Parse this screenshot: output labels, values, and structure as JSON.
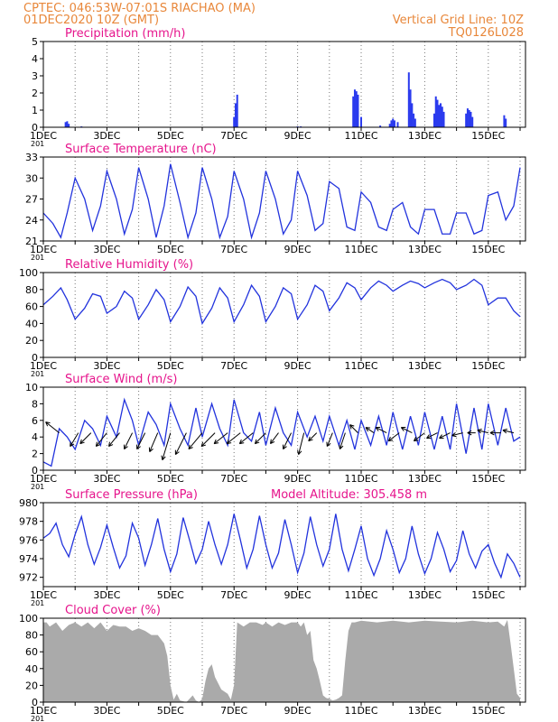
{
  "header": {
    "line1": "CPTEC:   046:53W-07:01S   RIACHAO (MA)",
    "line2": "01DEC2020 10Z (GMT)",
    "right1": "Vertical Grid Line: 10Z",
    "right2": "TQ0126L028"
  },
  "x_ticks": [
    "1DEC",
    "3DEC",
    "5DEC",
    "7DEC",
    "9DEC",
    "11DEC",
    "13DEC",
    "15DEC"
  ],
  "x_ticks_truncated": "201",
  "colors": {
    "line": "#2233dd",
    "bar": "#2a3aee",
    "cloud": "#aaaaaa",
    "header": "#e8873a",
    "title": "#e6148c",
    "grid": "#777777"
  },
  "chart_data": [
    {
      "type": "bar",
      "title": "Precipitation (mm/h)",
      "ylim": [
        0,
        5
      ],
      "yticks": [
        0,
        1,
        2,
        3,
        4,
        5
      ],
      "bars": [
        [
          1.7,
          0.3
        ],
        [
          1.75,
          0.35
        ],
        [
          1.8,
          0.2
        ],
        [
          2.2,
          0.05
        ],
        [
          7.0,
          0.6
        ],
        [
          7.05,
          1.4
        ],
        [
          7.1,
          1.9
        ],
        [
          10.75,
          1.8
        ],
        [
          10.8,
          2.2
        ],
        [
          10.85,
          2.1
        ],
        [
          10.9,
          1.9
        ],
        [
          11.0,
          0.6
        ],
        [
          11.6,
          0.1
        ],
        [
          11.9,
          0.2
        ],
        [
          11.95,
          0.4
        ],
        [
          12.0,
          0.5
        ],
        [
          12.05,
          0.4
        ],
        [
          12.15,
          0.3
        ],
        [
          12.5,
          3.2
        ],
        [
          12.55,
          2.2
        ],
        [
          12.6,
          1.4
        ],
        [
          12.65,
          0.8
        ],
        [
          12.7,
          0.5
        ],
        [
          13.3,
          0.8
        ],
        [
          13.35,
          1.8
        ],
        [
          13.4,
          1.6
        ],
        [
          13.45,
          1.3
        ],
        [
          13.5,
          1.4
        ],
        [
          13.55,
          1.2
        ],
        [
          13.6,
          0.9
        ],
        [
          14.3,
          0.8
        ],
        [
          14.35,
          1.1
        ],
        [
          14.4,
          1.0
        ],
        [
          14.45,
          0.9
        ],
        [
          14.5,
          0.6
        ],
        [
          15.5,
          0.7
        ],
        [
          15.55,
          0.5
        ],
        [
          9.0,
          0.05
        ],
        [
          9.1,
          0.05
        ]
      ]
    },
    {
      "type": "line",
      "title": "Surface Temperature (nC)",
      "ylim": [
        21,
        33
      ],
      "yticks": [
        21,
        24,
        27,
        30,
        33
      ],
      "x": [
        1.0,
        1.3,
        1.55,
        1.75,
        2.0,
        2.3,
        2.55,
        2.8,
        3.0,
        3.3,
        3.55,
        3.8,
        4.0,
        4.3,
        4.55,
        4.8,
        5.0,
        5.3,
        5.55,
        5.8,
        6.0,
        6.3,
        6.55,
        6.8,
        7.0,
        7.3,
        7.55,
        7.8,
        8.0,
        8.3,
        8.55,
        8.8,
        9.0,
        9.3,
        9.55,
        9.8,
        10.0,
        10.3,
        10.55,
        10.8,
        11.0,
        11.3,
        11.55,
        11.8,
        12.0,
        12.3,
        12.55,
        12.8,
        13.0,
        13.3,
        13.55,
        13.8,
        14.0,
        14.3,
        14.55,
        14.8,
        15.0,
        15.3,
        15.55,
        15.8,
        16.0
      ],
      "y": [
        25,
        23.5,
        21.5,
        25,
        30,
        27,
        22.5,
        26,
        31,
        27,
        22,
        25.5,
        31.5,
        27,
        21.5,
        26,
        32,
        26.5,
        21.5,
        25,
        31.5,
        27,
        21.5,
        24.5,
        31,
        27,
        21.5,
        25,
        31,
        27,
        22,
        24,
        31,
        27.5,
        22.5,
        23.5,
        29.5,
        28.5,
        23,
        22.5,
        28,
        26.5,
        23,
        22.5,
        25.5,
        26.5,
        23,
        22,
        25.5,
        25.5,
        22,
        22,
        25,
        25,
        22,
        22.5,
        27.5,
        28,
        24,
        26,
        31.5
      ]
    },
    {
      "type": "line",
      "title": "Relative Humidity (%)",
      "ylim": [
        0,
        100
      ],
      "yticks": [
        0,
        20,
        40,
        60,
        80,
        100
      ],
      "x": [
        1.0,
        1.3,
        1.55,
        1.75,
        2.0,
        2.3,
        2.55,
        2.8,
        3.0,
        3.3,
        3.55,
        3.8,
        4.0,
        4.3,
        4.55,
        4.8,
        5.0,
        5.3,
        5.55,
        5.8,
        6.0,
        6.3,
        6.55,
        6.8,
        7.0,
        7.3,
        7.55,
        7.8,
        8.0,
        8.3,
        8.55,
        8.8,
        9.0,
        9.3,
        9.55,
        9.8,
        10.0,
        10.3,
        10.55,
        10.8,
        11.0,
        11.3,
        11.55,
        11.8,
        12.0,
        12.3,
        12.55,
        12.8,
        13.0,
        13.3,
        13.55,
        13.8,
        14.0,
        14.3,
        14.55,
        14.8,
        15.0,
        15.3,
        15.55,
        15.8,
        16.0
      ],
      "y": [
        62,
        72,
        82,
        68,
        45,
        58,
        75,
        72,
        52,
        60,
        78,
        70,
        45,
        62,
        80,
        68,
        42,
        60,
        83,
        72,
        40,
        58,
        82,
        70,
        42,
        62,
        85,
        72,
        42,
        60,
        82,
        75,
        45,
        62,
        85,
        78,
        55,
        70,
        88,
        82,
        68,
        82,
        90,
        85,
        78,
        85,
        90,
        87,
        82,
        88,
        92,
        88,
        80,
        85,
        92,
        85,
        62,
        70,
        70,
        55,
        48
      ]
    },
    {
      "type": "line",
      "title": "Surface Wind (m/s)",
      "ylim": [
        0,
        10
      ],
      "yticks": [
        0,
        2,
        4,
        6,
        8,
        10
      ],
      "x": [
        1.0,
        1.25,
        1.5,
        1.75,
        2.0,
        2.3,
        2.55,
        2.8,
        3.0,
        3.3,
        3.55,
        3.8,
        4.0,
        4.3,
        4.55,
        4.8,
        5.0,
        5.3,
        5.55,
        5.8,
        6.0,
        6.3,
        6.55,
        6.8,
        7.0,
        7.3,
        7.55,
        7.8,
        8.0,
        8.3,
        8.55,
        8.8,
        9.0,
        9.3,
        9.55,
        9.8,
        10.0,
        10.3,
        10.55,
        10.8,
        11.0,
        11.3,
        11.55,
        11.8,
        12.0,
        12.3,
        12.55,
        12.8,
        13.0,
        13.3,
        13.55,
        13.8,
        14.0,
        14.3,
        14.55,
        14.8,
        15.0,
        15.3,
        15.55,
        15.8,
        16.0
      ],
      "y": [
        1.0,
        0.5,
        5.0,
        4.0,
        2.5,
        6.0,
        5.0,
        3.0,
        6.5,
        4.0,
        8.5,
        6.0,
        3.0,
        7.0,
        5.5,
        3.0,
        8.0,
        5.0,
        3.0,
        7.5,
        4.0,
        8.0,
        5.0,
        3.0,
        8.5,
        4.5,
        3.5,
        7.0,
        3.0,
        7.5,
        4.5,
        3.0,
        7.0,
        4.0,
        6.5,
        3.5,
        6.5,
        3.0,
        6.0,
        2.5,
        6.0,
        3.0,
        6.5,
        3.0,
        7.0,
        2.5,
        6.5,
        3.0,
        7.0,
        2.5,
        6.5,
        2.5,
        8.0,
        2.0,
        7.5,
        2.5,
        8.0,
        3.0,
        7.5,
        3.5,
        4.0
      ],
      "wind_vectors": [
        [
          1.5,
          -0.5,
          0.4
        ],
        [
          2.1,
          -0.3,
          -0.5
        ],
        [
          2.5,
          -0.4,
          -0.4
        ],
        [
          3.0,
          -0.4,
          -0.5
        ],
        [
          3.4,
          -0.4,
          -0.5
        ],
        [
          3.8,
          -0.3,
          -0.6
        ],
        [
          4.2,
          -0.3,
          -0.6
        ],
        [
          4.6,
          -0.3,
          -0.7
        ],
        [
          5.0,
          -0.3,
          -1.0
        ],
        [
          5.5,
          -0.4,
          -0.8
        ],
        [
          6.0,
          -0.5,
          -0.6
        ],
        [
          6.4,
          -0.5,
          -0.5
        ],
        [
          6.8,
          -0.5,
          -0.4
        ],
        [
          7.2,
          -0.5,
          -0.4
        ],
        [
          7.6,
          -0.5,
          -0.4
        ],
        [
          8.0,
          -0.4,
          -0.4
        ],
        [
          8.4,
          -0.3,
          -0.4
        ],
        [
          8.8,
          -0.3,
          -0.6
        ],
        [
          9.2,
          -0.2,
          -0.8
        ],
        [
          9.6,
          -0.3,
          -0.3
        ],
        [
          10.1,
          -0.2,
          -0.5
        ],
        [
          10.5,
          -0.2,
          -0.6
        ],
        [
          10.9,
          -0.3,
          0.3
        ],
        [
          11.4,
          -0.3,
          0.2
        ],
        [
          11.8,
          -0.4,
          0.2
        ],
        [
          12.2,
          -0.4,
          -0.3
        ],
        [
          12.6,
          -0.4,
          0.2
        ],
        [
          13.0,
          -0.4,
          -0.3
        ],
        [
          13.4,
          -0.4,
          -0.2
        ],
        [
          13.8,
          -0.4,
          -0.2
        ],
        [
          14.2,
          -0.4,
          -0.1
        ],
        [
          14.6,
          -0.3,
          0.0
        ],
        [
          15.0,
          -0.4,
          0.1
        ],
        [
          15.4,
          -0.4,
          0.0
        ],
        [
          15.8,
          -0.4,
          0.1
        ]
      ]
    },
    {
      "type": "line",
      "title": "Surface Pressure (hPa)",
      "annotation": "Model Altitude: 305.458 m",
      "ylim": [
        971,
        980
      ],
      "yticks": [
        972,
        974,
        976,
        978,
        980
      ],
      "x": [
        1.0,
        1.2,
        1.4,
        1.6,
        1.8,
        2.0,
        2.2,
        2.4,
        2.6,
        2.8,
        3.0,
        3.2,
        3.4,
        3.6,
        3.8,
        4.0,
        4.2,
        4.4,
        4.6,
        4.8,
        5.0,
        5.2,
        5.4,
        5.6,
        5.8,
        6.0,
        6.2,
        6.4,
        6.6,
        6.8,
        7.0,
        7.2,
        7.4,
        7.6,
        7.8,
        8.0,
        8.2,
        8.4,
        8.6,
        8.8,
        9.0,
        9.2,
        9.4,
        9.6,
        9.8,
        10.0,
        10.2,
        10.4,
        10.6,
        10.8,
        11.0,
        11.2,
        11.4,
        11.6,
        11.8,
        12.0,
        12.2,
        12.4,
        12.6,
        12.8,
        13.0,
        13.2,
        13.4,
        13.6,
        13.8,
        14.0,
        14.2,
        14.4,
        14.6,
        14.8,
        15.0,
        15.2,
        15.4,
        15.6,
        15.8,
        16.0
      ],
      "y": [
        976.2,
        976.7,
        977.8,
        975.5,
        974.2,
        976.6,
        978.5,
        975.5,
        973.4,
        975.2,
        977.6,
        975.2,
        973.0,
        974.3,
        977.8,
        976.2,
        973.3,
        975.5,
        978.3,
        975.0,
        972.6,
        974.5,
        978.4,
        976.0,
        973.5,
        975.0,
        978.0,
        975.5,
        973.4,
        975.5,
        978.8,
        976.0,
        973.0,
        975.0,
        978.6,
        975.5,
        973.0,
        974.6,
        978.2,
        975.5,
        972.5,
        974.6,
        978.5,
        975.5,
        973.2,
        975.0,
        978.8,
        975.0,
        972.7,
        975.0,
        977.5,
        974.0,
        972.2,
        974.0,
        977.0,
        975.0,
        972.5,
        974.0,
        977.5,
        974.5,
        972.4,
        974.0,
        976.8,
        975.0,
        972.6,
        973.8,
        977.0,
        974.5,
        973.0,
        974.8,
        975.5,
        973.5,
        972.0,
        974.5,
        973.5,
        972.0
      ]
    },
    {
      "type": "area",
      "title": "Cloud Cover (%)",
      "ylim": [
        0,
        100
      ],
      "yticks": [
        0,
        20,
        40,
        60,
        80,
        100
      ],
      "x": [
        1.0,
        1.1,
        1.2,
        1.4,
        1.6,
        1.8,
        2.0,
        2.2,
        2.4,
        2.6,
        2.8,
        3.0,
        3.2,
        3.4,
        3.6,
        3.8,
        4.0,
        4.2,
        4.4,
        4.6,
        4.7,
        4.8,
        4.9,
        5.0,
        5.1,
        5.2,
        5.3,
        5.5,
        5.7,
        5.8,
        5.9,
        6.0,
        6.1,
        6.2,
        6.3,
        6.4,
        6.6,
        6.8,
        6.9,
        7.0,
        7.1,
        7.3,
        7.5,
        7.7,
        7.9,
        8.0,
        8.2,
        8.4,
        8.6,
        8.8,
        9.0,
        9.1,
        9.2,
        9.3,
        9.4,
        9.5,
        9.6,
        9.7,
        9.8,
        9.9,
        10.0,
        10.1,
        10.2,
        10.3,
        10.4,
        10.5,
        10.6,
        10.7,
        10.8,
        11.0,
        11.5,
        12.0,
        12.5,
        13.0,
        13.5,
        14.0,
        14.5,
        15.0,
        15.3,
        15.5,
        15.6,
        15.7,
        15.8,
        15.9,
        16.0
      ],
      "y": [
        95,
        95,
        90,
        95,
        85,
        92,
        95,
        90,
        95,
        88,
        95,
        85,
        92,
        90,
        90,
        85,
        88,
        85,
        80,
        80,
        75,
        70,
        55,
        20,
        3,
        10,
        2,
        0,
        8,
        2,
        0,
        4,
        25,
        40,
        45,
        30,
        15,
        10,
        3,
        20,
        95,
        90,
        95,
        95,
        92,
        95,
        90,
        95,
        92,
        95,
        95,
        90,
        95,
        80,
        85,
        50,
        40,
        25,
        8,
        5,
        4,
        2,
        3,
        5,
        8,
        50,
        85,
        95,
        95,
        97,
        95,
        97,
        95,
        97,
        96,
        95,
        97,
        95,
        96,
        90,
        98,
        70,
        40,
        10,
        5
      ]
    }
  ]
}
